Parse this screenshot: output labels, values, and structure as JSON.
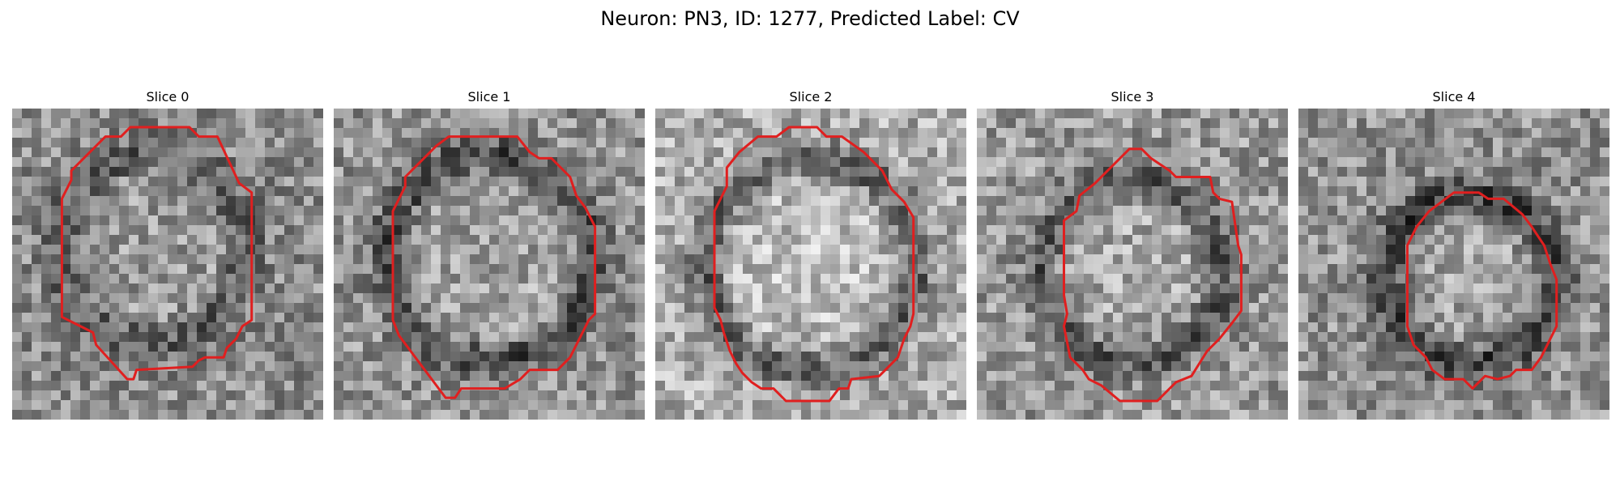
{
  "figure": {
    "title": "Neuron: PN3, ID: 1277, Predicted Label: CV"
  },
  "colors": {
    "contour": "#e01f1f",
    "background": "#ffffff"
  },
  "panels": [
    {
      "title": "Slice 0",
      "brightness": 0.55,
      "center": [
        0.45,
        0.45
      ],
      "radius": 0.3,
      "ring_strength": 0.18,
      "contour": [
        [
          0.38,
          0.06
        ],
        [
          0.57,
          0.06
        ],
        [
          0.6,
          0.09
        ],
        [
          0.66,
          0.09
        ],
        [
          0.73,
          0.24
        ],
        [
          0.77,
          0.27
        ],
        [
          0.77,
          0.68
        ],
        [
          0.74,
          0.7
        ],
        [
          0.72,
          0.74
        ],
        [
          0.69,
          0.77
        ],
        [
          0.68,
          0.8
        ],
        [
          0.62,
          0.8
        ],
        [
          0.6,
          0.81
        ],
        [
          0.58,
          0.83
        ],
        [
          0.4,
          0.84
        ],
        [
          0.39,
          0.87
        ],
        [
          0.37,
          0.87
        ],
        [
          0.27,
          0.76
        ],
        [
          0.26,
          0.72
        ],
        [
          0.2,
          0.69
        ],
        [
          0.16,
          0.67
        ],
        [
          0.16,
          0.29
        ],
        [
          0.19,
          0.23
        ],
        [
          0.19,
          0.2
        ],
        [
          0.3,
          0.09
        ],
        [
          0.35,
          0.09
        ]
      ]
    },
    {
      "title": "Slice 1",
      "brightness": 0.58,
      "center": [
        0.5,
        0.48
      ],
      "radius": 0.33,
      "ring_strength": 0.28,
      "contour": [
        [
          0.37,
          0.09
        ],
        [
          0.59,
          0.09
        ],
        [
          0.63,
          0.14
        ],
        [
          0.66,
          0.16
        ],
        [
          0.7,
          0.16
        ],
        [
          0.76,
          0.22
        ],
        [
          0.78,
          0.28
        ],
        [
          0.81,
          0.32
        ],
        [
          0.84,
          0.38
        ],
        [
          0.84,
          0.66
        ],
        [
          0.82,
          0.68
        ],
        [
          0.8,
          0.72
        ],
        [
          0.78,
          0.76
        ],
        [
          0.76,
          0.8
        ],
        [
          0.72,
          0.84
        ],
        [
          0.63,
          0.84
        ],
        [
          0.6,
          0.87
        ],
        [
          0.55,
          0.9
        ],
        [
          0.41,
          0.9
        ],
        [
          0.39,
          0.93
        ],
        [
          0.36,
          0.93
        ],
        [
          0.21,
          0.73
        ],
        [
          0.19,
          0.68
        ],
        [
          0.19,
          0.33
        ],
        [
          0.23,
          0.25
        ],
        [
          0.23,
          0.22
        ],
        [
          0.3,
          0.15
        ],
        [
          0.33,
          0.12
        ]
      ]
    },
    {
      "title": "Slice 2",
      "brightness": 0.68,
      "center": [
        0.5,
        0.5
      ],
      "radius": 0.34,
      "ring_strength": 0.3,
      "contour": [
        [
          0.43,
          0.06
        ],
        [
          0.52,
          0.06
        ],
        [
          0.55,
          0.09
        ],
        [
          0.6,
          0.09
        ],
        [
          0.67,
          0.14
        ],
        [
          0.73,
          0.2
        ],
        [
          0.76,
          0.26
        ],
        [
          0.8,
          0.3
        ],
        [
          0.83,
          0.35
        ],
        [
          0.83,
          0.66
        ],
        [
          0.82,
          0.7
        ],
        [
          0.8,
          0.74
        ],
        [
          0.78,
          0.8
        ],
        [
          0.74,
          0.84
        ],
        [
          0.72,
          0.86
        ],
        [
          0.63,
          0.87
        ],
        [
          0.62,
          0.9
        ],
        [
          0.59,
          0.9
        ],
        [
          0.56,
          0.94
        ],
        [
          0.42,
          0.94
        ],
        [
          0.38,
          0.9
        ],
        [
          0.34,
          0.9
        ],
        [
          0.31,
          0.88
        ],
        [
          0.28,
          0.85
        ],
        [
          0.26,
          0.82
        ],
        [
          0.24,
          0.78
        ],
        [
          0.22,
          0.72
        ],
        [
          0.21,
          0.68
        ],
        [
          0.19,
          0.64
        ],
        [
          0.19,
          0.33
        ],
        [
          0.23,
          0.25
        ],
        [
          0.23,
          0.19
        ],
        [
          0.27,
          0.14
        ],
        [
          0.33,
          0.09
        ],
        [
          0.39,
          0.09
        ]
      ]
    },
    {
      "title": "Slice 3",
      "brightness": 0.6,
      "center": [
        0.5,
        0.52
      ],
      "radius": 0.29,
      "ring_strength": 0.25,
      "contour": [
        [
          0.49,
          0.13
        ],
        [
          0.53,
          0.13
        ],
        [
          0.56,
          0.16
        ],
        [
          0.59,
          0.18
        ],
        [
          0.62,
          0.2
        ],
        [
          0.64,
          0.22
        ],
        [
          0.75,
          0.22
        ],
        [
          0.76,
          0.27
        ],
        [
          0.78,
          0.29
        ],
        [
          0.82,
          0.3
        ],
        [
          0.84,
          0.44
        ],
        [
          0.85,
          0.47
        ],
        [
          0.85,
          0.65
        ],
        [
          0.82,
          0.69
        ],
        [
          0.78,
          0.74
        ],
        [
          0.74,
          0.78
        ],
        [
          0.69,
          0.86
        ],
        [
          0.64,
          0.88
        ],
        [
          0.61,
          0.91
        ],
        [
          0.58,
          0.94
        ],
        [
          0.46,
          0.94
        ],
        [
          0.4,
          0.89
        ],
        [
          0.36,
          0.87
        ],
        [
          0.34,
          0.84
        ],
        [
          0.3,
          0.8
        ],
        [
          0.28,
          0.7
        ],
        [
          0.29,
          0.66
        ],
        [
          0.28,
          0.6
        ],
        [
          0.28,
          0.36
        ],
        [
          0.32,
          0.33
        ],
        [
          0.33,
          0.28
        ],
        [
          0.38,
          0.24
        ],
        [
          0.42,
          0.2
        ]
      ]
    },
    {
      "title": "Slice 4",
      "brightness": 0.57,
      "center": [
        0.55,
        0.55
      ],
      "radius": 0.27,
      "ring_strength": 0.32,
      "contour": [
        [
          0.5,
          0.27
        ],
        [
          0.58,
          0.27
        ],
        [
          0.61,
          0.29
        ],
        [
          0.66,
          0.29
        ],
        [
          0.72,
          0.34
        ],
        [
          0.75,
          0.38
        ],
        [
          0.79,
          0.44
        ],
        [
          0.81,
          0.5
        ],
        [
          0.83,
          0.55
        ],
        [
          0.83,
          0.7
        ],
        [
          0.8,
          0.76
        ],
        [
          0.78,
          0.8
        ],
        [
          0.75,
          0.84
        ],
        [
          0.7,
          0.84
        ],
        [
          0.68,
          0.86
        ],
        [
          0.64,
          0.87
        ],
        [
          0.6,
          0.86
        ],
        [
          0.56,
          0.9
        ],
        [
          0.53,
          0.87
        ],
        [
          0.47,
          0.87
        ],
        [
          0.43,
          0.84
        ],
        [
          0.41,
          0.8
        ],
        [
          0.37,
          0.76
        ],
        [
          0.35,
          0.7
        ],
        [
          0.35,
          0.44
        ],
        [
          0.38,
          0.38
        ],
        [
          0.42,
          0.33
        ]
      ]
    }
  ]
}
